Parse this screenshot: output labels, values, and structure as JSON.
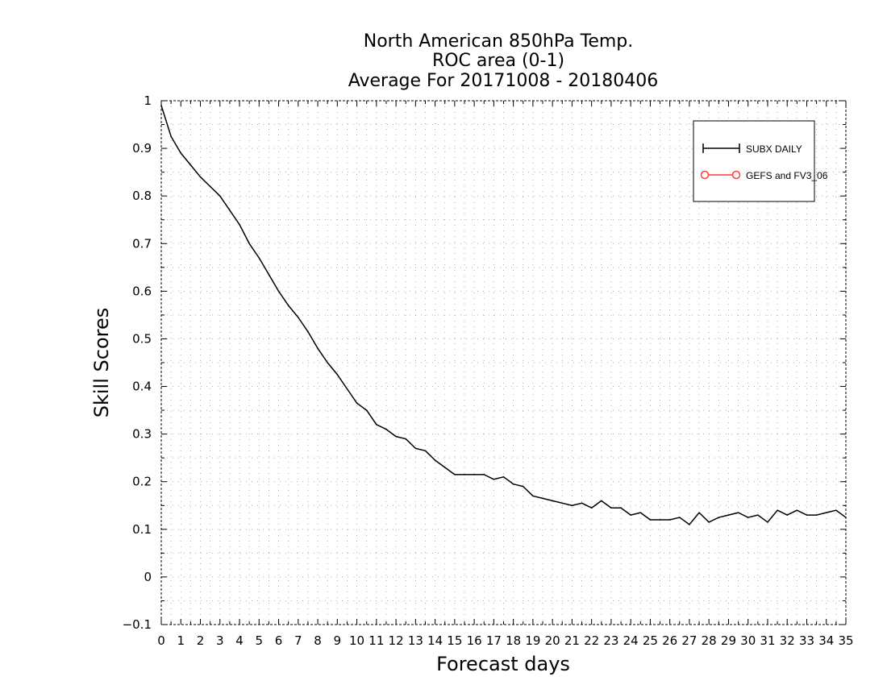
{
  "chart_data": {
    "type": "line",
    "title": [
      "North American 850hPa Temp.",
      "ROC area (0-1)",
      "Average For 20171008 - 20180406"
    ],
    "xlabel": "Forecast days",
    "ylabel": "Skill Scores",
    "xlim": [
      0,
      35
    ],
    "ylim": [
      -0.1,
      1
    ],
    "x_ticks": [
      "0",
      "1",
      "2",
      "3",
      "4",
      "5",
      "6",
      "7",
      "8",
      "9",
      "10",
      "11",
      "12",
      "13",
      "14",
      "15",
      "16",
      "17",
      "18",
      "19",
      "20",
      "21",
      "22",
      "23",
      "24",
      "25",
      "26",
      "27",
      "28",
      "29",
      "30",
      "31",
      "32",
      "33",
      "34",
      "35"
    ],
    "y_ticks": [
      "−0.1",
      "0",
      "0.1",
      "0.2",
      "0.3",
      "0.4",
      "0.5",
      "0.6",
      "0.7",
      "0.8",
      "0.9",
      "1"
    ],
    "grid": true,
    "legend_position": "top-right",
    "series": [
      {
        "name": "SUBX DAILY",
        "color": "#000000",
        "marker": "plus",
        "x": [
          0,
          0.5,
          1,
          1.5,
          2,
          2.5,
          3,
          3.5,
          4,
          4.5,
          5,
          5.5,
          6,
          6.5,
          7,
          7.5,
          8,
          8.5,
          9,
          9.5,
          10,
          10.5,
          11,
          11.5,
          12,
          12.5,
          13,
          13.5,
          14,
          14.5,
          15,
          15.5,
          16,
          16.5,
          17,
          17.5,
          18,
          18.5,
          19,
          19.5,
          20,
          20.5,
          21,
          21.5,
          22,
          22.5,
          23,
          23.5,
          24,
          24.5,
          25,
          25.5,
          26,
          26.5,
          27,
          27.5,
          28,
          28.5,
          29,
          29.5,
          30,
          30.5,
          31,
          31.5,
          32,
          32.5,
          33,
          33.5,
          34,
          34.5,
          35
        ],
        "values": [
          0.99,
          0.925,
          0.89,
          0.865,
          0.84,
          0.82,
          0.8,
          0.77,
          0.74,
          0.7,
          0.67,
          0.635,
          0.6,
          0.57,
          0.545,
          0.515,
          0.48,
          0.45,
          0.425,
          0.395,
          0.365,
          0.35,
          0.32,
          0.31,
          0.295,
          0.29,
          0.27,
          0.265,
          0.245,
          0.23,
          0.215,
          0.215,
          0.215,
          0.215,
          0.205,
          0.21,
          0.195,
          0.19,
          0.17,
          0.165,
          0.16,
          0.155,
          0.15,
          0.155,
          0.145,
          0.16,
          0.145,
          0.145,
          0.13,
          0.135,
          0.12,
          0.12,
          0.12,
          0.125,
          0.11,
          0.135,
          0.115,
          0.125,
          0.13,
          0.135,
          0.125,
          0.13,
          0.115,
          0.14,
          0.13,
          0.14,
          0.13,
          0.13,
          0.135,
          0.14,
          0.125
        ]
      },
      {
        "name": "GEFS and FV3_06",
        "color": "#ff3b3b",
        "marker": "circle",
        "x": [],
        "values": []
      }
    ]
  }
}
